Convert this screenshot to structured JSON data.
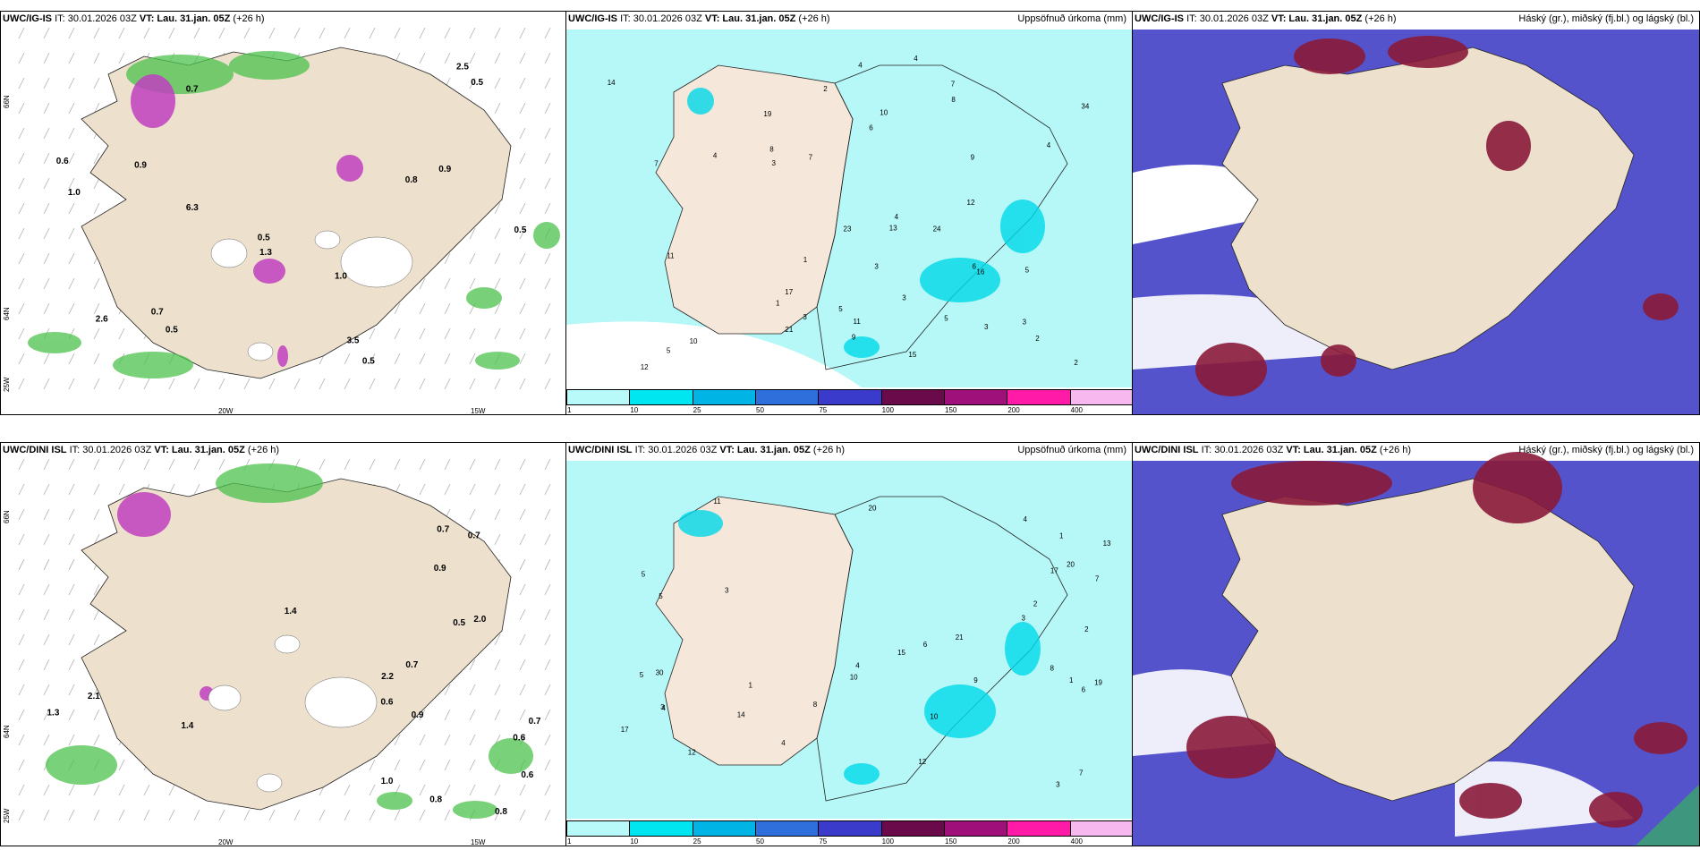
{
  "panels": [
    {
      "model": "UWC/IG-IS",
      "it": "IT: 30.01.2026 03Z",
      "vt_label": "VT:",
      "vt_value": "Lau. 31.jan. 05Z",
      "lead": "(+26 h)",
      "right_title": ""
    },
    {
      "model": "UWC/IG-IS",
      "it": "IT: 30.01.2026 03Z",
      "vt_label": "VT:",
      "vt_value": "Lau. 31.jan. 05Z",
      "lead": "(+26 h)",
      "right_title": "Uppsöfnuð úrkoma (mm)"
    },
    {
      "model": "UWC/IG-IS",
      "it": "IT: 30.01.2026 03Z",
      "vt_label": "VT:",
      "vt_value": "Lau. 31.jan. 05Z",
      "lead": "(+26 h)",
      "right_title": "Háský (gr.), miðský (fj.bl.) og lágský (bl.)"
    },
    {
      "model": "UWC/DINI ISL",
      "it": "IT: 30.01.2026 03Z",
      "vt_label": "VT:",
      "vt_value": "Lau. 31.jan. 05Z",
      "lead": "(+26 h)",
      "right_title": ""
    },
    {
      "model": "UWC/DINI ISL",
      "it": "IT: 30.01.2026 03Z",
      "vt_label": "VT:",
      "vt_value": "Lau. 31.jan. 05Z",
      "lead": "(+26 h)",
      "right_title": "Uppsöfnuð úrkoma (mm)"
    },
    {
      "model": "UWC/DINI ISL",
      "it": "IT: 30.01.2026 03Z",
      "vt_label": "VT:",
      "vt_value": "Lau. 31.jan. 05Z",
      "lead": "(+26 h)",
      "right_title": "Háský (gr.), miðský (fj.bl.) og lágský (bl.)"
    }
  ],
  "axes": {
    "lon": [
      "20W",
      "15W"
    ],
    "lat": [
      "66N",
      "64N",
      "25W"
    ]
  },
  "colorbar": {
    "labels": [
      "1",
      "10",
      "25",
      "50",
      "75",
      "100",
      "150",
      "200",
      "400"
    ],
    "colors": [
      "#b8fafa",
      "#00e6f0",
      "#00b4e6",
      "#2e6fdc",
      "#3a3acb",
      "#6a0a4a",
      "#a0107a",
      "#ff1aa8",
      "#f7b8f0"
    ]
  },
  "values": {
    "top_wind": [
      "0.5",
      "0.7",
      "0.7",
      "0.9",
      "0.9",
      "3.5",
      "0.5",
      "6.3",
      "1.3",
      "0.5",
      "2.6",
      "0.6",
      "0.5",
      "1.0",
      "0.8",
      "2.5",
      "1.0",
      "0.5"
    ],
    "top_precip": [
      "5",
      "5",
      "4",
      "3",
      "2",
      "4",
      "3",
      "7",
      "3",
      "1",
      "2",
      "3",
      "3",
      "4",
      "5",
      "8",
      "6",
      "11",
      "23",
      "34",
      "14",
      "10",
      "9",
      "24",
      "16",
      "8",
      "7",
      "6",
      "4",
      "3",
      "2",
      "1",
      "10",
      "12",
      "13",
      "15",
      "11",
      "9",
      "7",
      "5",
      "4",
      "17",
      "19",
      "21",
      "12"
    ],
    "bot_wind": [
      "0.6",
      "0.7",
      "0.5",
      "0.6",
      "1.0",
      "0.9",
      "2.0",
      "1.4",
      "0.6",
      "0.8",
      "0.7",
      "2.2",
      "1.3",
      "0.9",
      "1.4",
      "0.8",
      "0.7",
      "2.1",
      "0.7"
    ],
    "bot_precip": [
      "3",
      "4",
      "5",
      "4",
      "1",
      "2",
      "3",
      "1",
      "12",
      "11",
      "20",
      "17",
      "6",
      "7",
      "8",
      "10",
      "19",
      "5",
      "3",
      "2",
      "1",
      "4",
      "7",
      "9",
      "13",
      "15",
      "17",
      "20",
      "30",
      "21",
      "6",
      "3",
      "4",
      "8",
      "5",
      "12",
      "10",
      "14"
    ]
  }
}
